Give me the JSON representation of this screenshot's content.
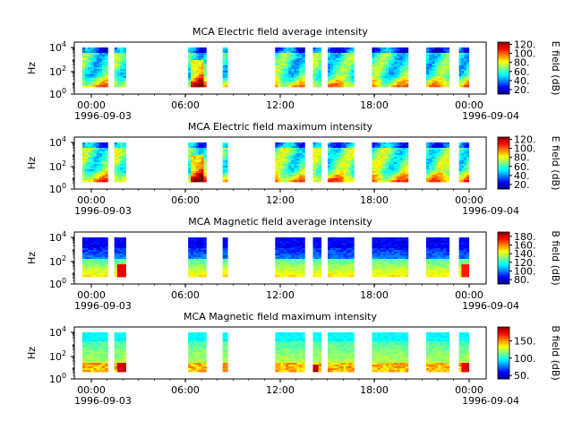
{
  "chart_data": [
    {
      "type": "heatmap",
      "title": "MCA  Electric field average intensity",
      "ylabel": "Hz",
      "y_scale": "log",
      "y_ticks": [
        "10^4",
        "10^2",
        "10^0"
      ],
      "x_ticks": [
        "00:00",
        "06:00",
        "12:00",
        "18:00",
        "00:00"
      ],
      "x_start_date": "1996-09-03",
      "x_end_date": "1996-09-04",
      "colorbar_label": "E field (dB)",
      "colorbar_ticks": [
        "120.",
        "100.",
        "80.",
        "60.",
        "40.",
        "20."
      ],
      "colorbar_range": [
        10,
        125
      ],
      "colormap": "jet",
      "profile": "electric_avg",
      "data_segments_hours": [
        [
          0.05,
          1.6
        ],
        [
          2.0,
          2.7
        ],
        [
          6.5,
          7.6
        ],
        [
          8.6,
          8.9
        ],
        [
          11.8,
          13.6
        ],
        [
          14.1,
          14.6
        ],
        [
          15.0,
          16.6
        ],
        [
          17.7,
          19.9
        ],
        [
          21.0,
          22.4
        ],
        [
          23.0,
          23.6
        ]
      ]
    },
    {
      "type": "heatmap",
      "title": "MCA  Electric field maximum intensity",
      "ylabel": "Hz",
      "y_scale": "log",
      "y_ticks": [
        "10^4",
        "10^2",
        "10^0"
      ],
      "x_ticks": [
        "00:00",
        "06:00",
        "12:00",
        "18:00",
        "00:00"
      ],
      "x_start_date": "1996-09-03",
      "x_end_date": "1996-09-04",
      "colorbar_label": "E field (dB)",
      "colorbar_ticks": [
        "120.",
        "100.",
        "80.",
        "60.",
        "40.",
        "20."
      ],
      "colorbar_range": [
        10,
        125
      ],
      "colormap": "jet",
      "profile": "electric_max",
      "data_segments_hours": [
        [
          0.05,
          1.6
        ],
        [
          2.0,
          2.7
        ],
        [
          6.5,
          7.6
        ],
        [
          8.6,
          8.9
        ],
        [
          11.8,
          13.6
        ],
        [
          14.1,
          14.6
        ],
        [
          15.0,
          16.6
        ],
        [
          17.7,
          19.9
        ],
        [
          21.0,
          22.4
        ],
        [
          23.0,
          23.6
        ]
      ]
    },
    {
      "type": "heatmap",
      "title": "MCA  Magnetic field average intensity",
      "ylabel": "Hz",
      "y_scale": "log",
      "y_ticks": [
        "10^4",
        "10^2",
        "10^0"
      ],
      "x_ticks": [
        "00:00",
        "06:00",
        "12:00",
        "18:00",
        "00:00"
      ],
      "x_start_date": "1996-09-03",
      "x_end_date": "1996-09-04",
      "colorbar_label": "B field (dB)",
      "colorbar_ticks": [
        "180.",
        "160.",
        "140.",
        "120.",
        "100.",
        "80."
      ],
      "colorbar_range": [
        70,
        190
      ],
      "colormap": "jet",
      "profile": "magnetic_avg",
      "data_segments_hours": [
        [
          0.05,
          1.6
        ],
        [
          2.0,
          2.7
        ],
        [
          6.5,
          7.6
        ],
        [
          8.6,
          8.9
        ],
        [
          11.8,
          13.6
        ],
        [
          14.1,
          14.6
        ],
        [
          15.0,
          16.6
        ],
        [
          17.7,
          19.9
        ],
        [
          21.0,
          22.4
        ],
        [
          23.0,
          23.6
        ]
      ]
    },
    {
      "type": "heatmap",
      "title": "MCA  Magnetic field maximum intensity",
      "ylabel": "Hz",
      "y_scale": "log",
      "y_ticks": [
        "10^4",
        "10^2",
        "10^0"
      ],
      "x_ticks": [
        "00:00",
        "06:00",
        "12:00",
        "18:00",
        "00:00"
      ],
      "x_start_date": "1996-09-03",
      "x_end_date": "1996-09-04",
      "colorbar_label": "B field (dB)",
      "colorbar_ticks": [
        "150.",
        "100.",
        "50."
      ],
      "colorbar_range": [
        40,
        190
      ],
      "colormap": "jet",
      "profile": "magnetic_max",
      "data_segments_hours": [
        [
          0.05,
          1.6
        ],
        [
          2.0,
          2.7
        ],
        [
          6.5,
          7.6
        ],
        [
          8.6,
          8.9
        ],
        [
          11.8,
          13.6
        ],
        [
          14.1,
          14.6
        ],
        [
          15.0,
          16.6
        ],
        [
          17.7,
          19.9
        ],
        [
          21.0,
          22.4
        ],
        [
          23.0,
          23.6
        ]
      ]
    }
  ]
}
